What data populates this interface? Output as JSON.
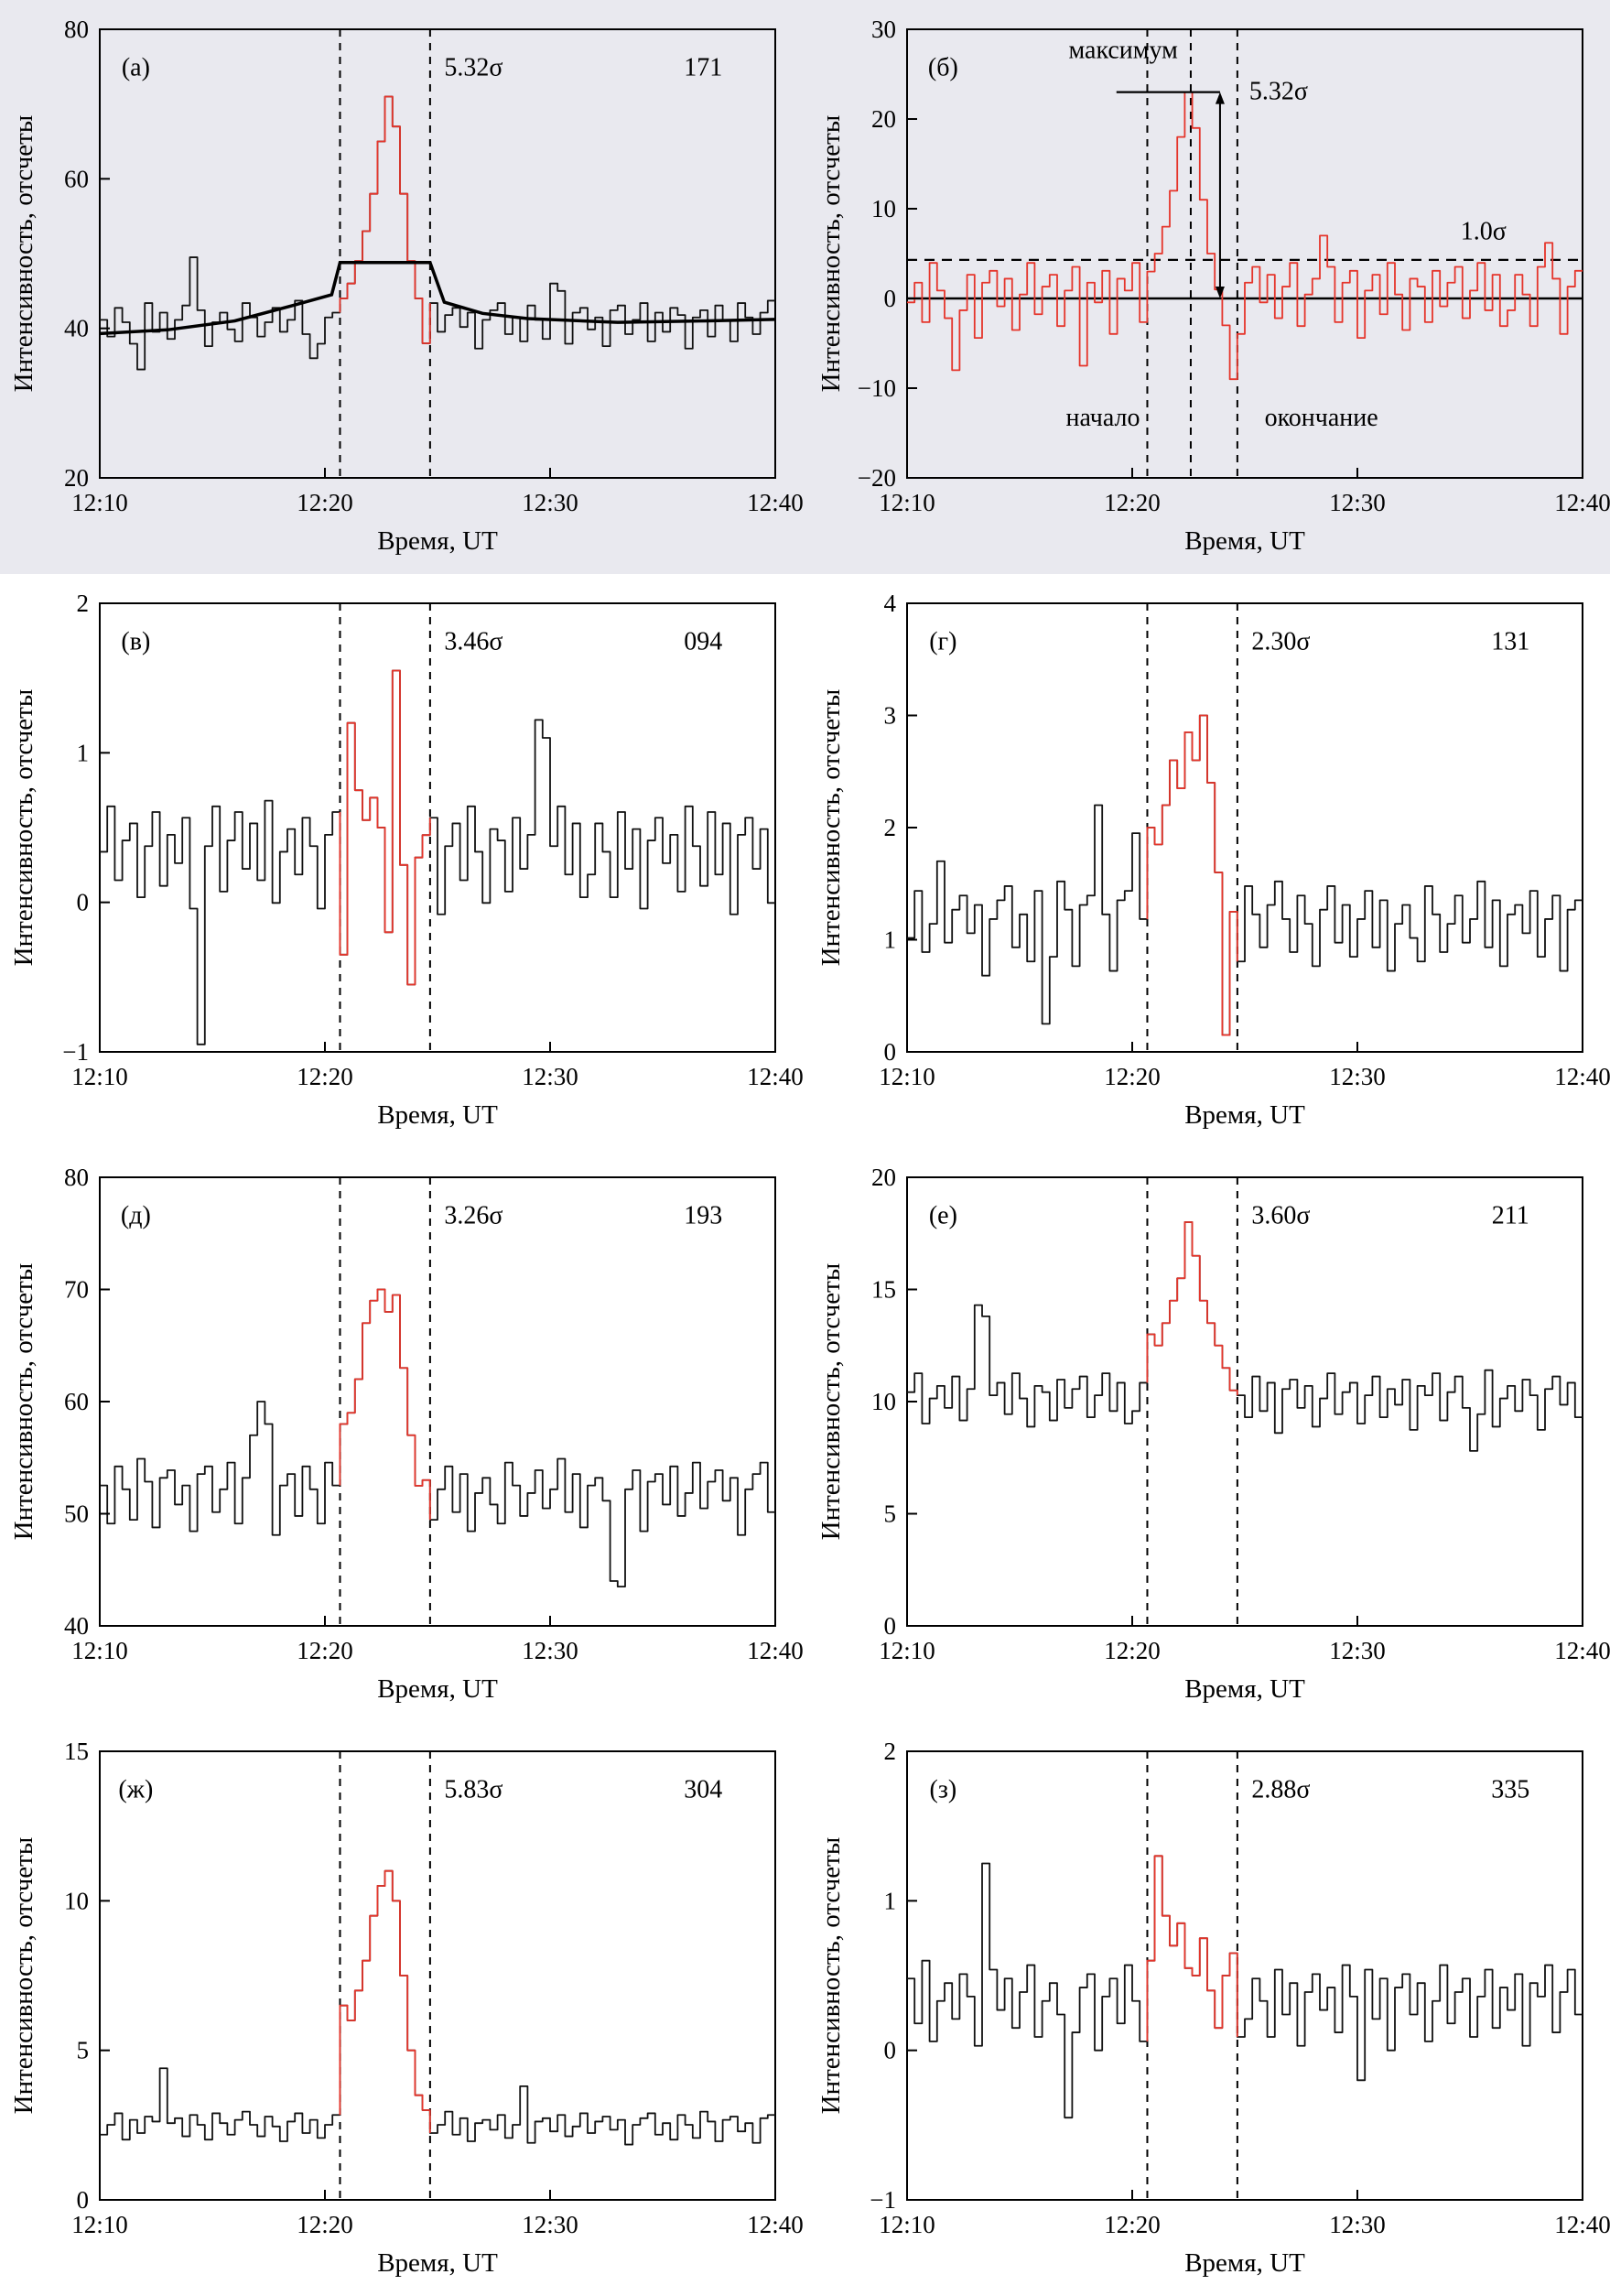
{
  "figure": {
    "x_label": "Время, UT",
    "y_label": "Интенсивность, отсчеты",
    "x_ticks": [
      "12:10",
      "12:20",
      "12:30",
      "12:40"
    ],
    "x_tick_minutes": [
      0,
      10,
      20,
      30
    ],
    "x_range": [
      0,
      30
    ],
    "n_bins": 90,
    "colors": {
      "trace": "#111111",
      "burst": "#e5352b",
      "top_background": "#e9e9ef"
    }
  },
  "noise_patterns": {
    "p1": [
      0.2,
      -0.5,
      0.7,
      0.1,
      -0.8,
      0.4,
      0.9,
      -0.3,
      0.5,
      -0.6,
      0.2,
      0.8,
      -0.4,
      0.6,
      -0.9,
      0.1,
      0.5,
      -0.2,
      -0.7,
      0.9,
      0.3,
      -0.5,
      0.1,
      0.7,
      -0.3,
      0.2,
      1.0,
      -0.4,
      0.6,
      -0.8,
      0.3,
      0.5,
      -0.1,
      0.8,
      -0.6,
      0.2,
      0.7,
      -0.9,
      0.4,
      0.6,
      -0.2,
      0.8,
      -0.5,
      0.1,
      0.9,
      -0.3,
      0.4,
      0.7,
      -0.1,
      0.5,
      -1.0,
      0.2,
      0.6,
      0.9,
      -0.4,
      0.3,
      -0.7,
      0.8,
      0.2,
      -0.6,
      1.0,
      0.4,
      -0.8,
      0.5,
      0.7,
      -0.2,
      0.3,
      -0.9,
      0.6,
      0.8,
      -0.4,
      0.2,
      0.9,
      -0.7,
      0.5,
      -0.3,
      0.7,
      0.4,
      -1.0,
      0.3,
      0.6,
      -0.5,
      0.8,
      0.2,
      -0.7,
      0.9,
      0.3,
      -0.4,
      0.5,
      1.0
    ],
    "p2": [
      -0.3,
      0.6,
      0.1,
      -0.7,
      0.8,
      -0.2,
      0.5,
      -0.9,
      0.3,
      0.7,
      -0.1,
      0.4,
      -0.6,
      0.9,
      0.2,
      -0.5,
      0.8,
      -0.3,
      0.6,
      -1.0,
      0.4,
      0.7,
      -0.2,
      0.5,
      -0.8,
      0.1,
      0.9,
      -0.4,
      0.3,
      0.6,
      -0.7,
      0.2,
      0.8,
      -0.5,
      0.4,
      -0.1,
      0.7,
      -0.9,
      0.5,
      0.2,
      0.9,
      -0.6,
      0.3,
      0.8,
      -0.2,
      0.6,
      -0.4,
      1.0,
      -0.8,
      0.1,
      0.5,
      -0.3,
      0.7,
      0.2,
      -0.9,
      0.4,
      0.8,
      -0.1,
      0.6,
      -0.5,
      0.3,
      0.9,
      -0.7,
      0.1,
      0.5,
      -0.2,
      0.8,
      -0.6,
      0.4,
      0.7,
      -1.0,
      0.2,
      0.6,
      -0.4,
      0.9,
      0.1,
      -0.8,
      0.5,
      0.3,
      -0.6,
      0.7,
      -0.2,
      0.4,
      0.8,
      -0.5,
      0.2,
      0.9,
      -0.3,
      0.6,
      -0.7
    ]
  },
  "chart_data": [
    {
      "id": "a",
      "type": "line",
      "label": "(а)",
      "sigma": "5.32σ",
      "number": "171",
      "ylim": [
        20,
        80
      ],
      "y_ticks": [
        20,
        40,
        60,
        80
      ],
      "baseline": 40.5,
      "noise_amp": 3.2,
      "pattern": "p1",
      "phase": 0,
      "overrides": [
        [
          5,
          34.5
        ],
        [
          12,
          49.5
        ],
        [
          28,
          36
        ],
        [
          60,
          46
        ],
        [
          61,
          45
        ]
      ],
      "burst_start_bin": 32,
      "burst_values": [
        44,
        46,
        49,
        53,
        58,
        65,
        71,
        67,
        58,
        49,
        44,
        38
      ],
      "dashed_x": [
        10.67,
        14.67
      ],
      "mean_line": [
        [
          0,
          39.3
        ],
        [
          3,
          39.8
        ],
        [
          6,
          41
        ],
        [
          8.5,
          43
        ],
        [
          10.3,
          44.5
        ],
        [
          10.67,
          48.8
        ],
        [
          14.67,
          48.8
        ],
        [
          15.3,
          43.5
        ],
        [
          17,
          42
        ],
        [
          19,
          41.3
        ],
        [
          23,
          40.8
        ],
        [
          27,
          41
        ],
        [
          30,
          41.2
        ]
      ]
    },
    {
      "id": "b",
      "type": "line",
      "label": "(б)",
      "ylim": [
        -20,
        30
      ],
      "y_ticks": [
        -20,
        -10,
        0,
        10,
        20,
        30
      ],
      "baseline": 0,
      "noise_amp": 4.4,
      "pattern": "p2",
      "phase": 10,
      "overrides": [
        [
          6,
          -8
        ],
        [
          23,
          -7.5
        ],
        [
          55,
          7
        ],
        [
          85,
          6.2
        ]
      ],
      "burst_start_bin": 32,
      "burst_values": [
        3,
        5,
        8,
        12,
        18,
        23,
        19,
        11,
        5,
        1,
        -3,
        -9
      ],
      "dashed_x": [
        10.67,
        12.6,
        14.67
      ],
      "all_red": true,
      "annotations": {
        "zero_line_y": 0,
        "sigma_line": {
          "y": 4.3,
          "label": "1.0σ",
          "label_x": 25.6,
          "label_y": 6.6
        },
        "max_line": {
          "y": 23,
          "x1": 9.3,
          "x2": 13.9,
          "label": "5.32σ",
          "label_x": 15.2,
          "label_y": 22.2
        },
        "arrow": {
          "x": 13.9,
          "y1": 0,
          "y2": 23
        },
        "texts": [
          {
            "text": "максимум",
            "x": 9.6,
            "y": 26.8
          },
          {
            "text": "начало",
            "x": 8.7,
            "y": -14.2
          },
          {
            "text": "окончание",
            "x": 18.4,
            "y": -14.2
          }
        ]
      }
    },
    {
      "id": "v",
      "type": "line",
      "label": "(в)",
      "sigma": "3.46σ",
      "number": "094",
      "ylim": [
        -1,
        2
      ],
      "y_ticks": [
        -1,
        0,
        1,
        2
      ],
      "baseline": 0.3,
      "noise_amp": 0.38,
      "pattern": "p2",
      "phase": 25,
      "overrides": [
        [
          13,
          -0.95
        ],
        [
          58,
          1.22
        ],
        [
          59,
          1.1
        ]
      ],
      "burst_start_bin": 32,
      "burst_values": [
        -0.35,
        1.2,
        0.75,
        0.55,
        0.7,
        0.5,
        -0.2,
        1.55,
        0.25,
        -0.55,
        0.3,
        0.45
      ],
      "dashed_x": [
        10.67,
        14.67
      ]
    },
    {
      "id": "g",
      "type": "line",
      "label": "(г)",
      "sigma": "2.30σ",
      "number": "131",
      "ylim": [
        0,
        4
      ],
      "y_ticks": [
        0,
        1,
        2,
        3,
        4
      ],
      "baseline": 1.1,
      "noise_amp": 0.42,
      "pattern": "p1",
      "phase": 40,
      "overrides": [
        [
          4,
          1.7
        ],
        [
          18,
          0.25
        ],
        [
          25,
          2.2
        ],
        [
          30,
          1.95
        ]
      ],
      "burst_start_bin": 32,
      "burst_values": [
        2.0,
        1.85,
        2.2,
        2.6,
        2.35,
        2.85,
        2.6,
        3.0,
        2.4,
        1.6,
        0.15,
        1.25
      ],
      "dashed_x": [
        10.67,
        14.67
      ]
    },
    {
      "id": "d",
      "type": "line",
      "label": "(д)",
      "sigma": "3.26σ",
      "number": "193",
      "ylim": [
        40,
        80
      ],
      "y_ticks": [
        40,
        50,
        60,
        70,
        80
      ],
      "baseline": 51.5,
      "noise_amp": 3.4,
      "pattern": "p1",
      "phase": 55,
      "overrides": [
        [
          20,
          57
        ],
        [
          21,
          60
        ],
        [
          22,
          58
        ],
        [
          68,
          44
        ],
        [
          69,
          43.5
        ]
      ],
      "burst_start_bin": 32,
      "burst_values": [
        58,
        59,
        62,
        67,
        69,
        70,
        68,
        69.5,
        63,
        57,
        52.5,
        53
      ],
      "dashed_x": [
        10.67,
        14.67
      ]
    },
    {
      "id": "e",
      "type": "line",
      "label": "(е)",
      "sigma": "3.60σ",
      "number": "211",
      "ylim": [
        0,
        20
      ],
      "y_ticks": [
        0,
        5,
        10,
        15,
        20
      ],
      "baseline": 10,
      "noise_amp": 1.4,
      "pattern": "p2",
      "phase": 60,
      "overrides": [
        [
          9,
          14.3
        ],
        [
          10,
          13.8
        ],
        [
          75,
          7.8
        ]
      ],
      "burst_start_bin": 32,
      "burst_values": [
        13,
        12.5,
        13.5,
        14.5,
        15.5,
        18,
        16.5,
        14.5,
        13.5,
        12.5,
        11.5,
        10.5
      ],
      "dashed_x": [
        10.67,
        14.67
      ]
    },
    {
      "id": "zh",
      "type": "line",
      "label": "(ж)",
      "sigma": "5.83σ",
      "number": "304",
      "ylim": [
        0,
        15
      ],
      "y_ticks": [
        0,
        5,
        10,
        15
      ],
      "baseline": 2.4,
      "noise_amp": 0.55,
      "pattern": "p1",
      "phase": 70,
      "overrides": [
        [
          8,
          4.4
        ],
        [
          56,
          3.8
        ]
      ],
      "burst_start_bin": 32,
      "burst_values": [
        6.5,
        6,
        7,
        8,
        9.5,
        10.5,
        11,
        10,
        7.5,
        5,
        3.5,
        3
      ],
      "dashed_x": [
        10.67,
        14.67
      ]
    },
    {
      "id": "z",
      "type": "line",
      "label": "(з)",
      "sigma": "2.88σ",
      "number": "335",
      "ylim": [
        -1,
        2
      ],
      "y_ticks": [
        -1,
        0,
        1,
        2
      ],
      "baseline": 0.3,
      "noise_amp": 0.3,
      "pattern": "p2",
      "phase": 45,
      "overrides": [
        [
          10,
          1.25
        ],
        [
          21,
          -0.45
        ],
        [
          60,
          -0.2
        ]
      ],
      "burst_start_bin": 32,
      "burst_values": [
        0.6,
        1.3,
        0.9,
        0.7,
        0.85,
        0.55,
        0.5,
        0.75,
        0.4,
        0.15,
        0.5,
        0.65
      ],
      "dashed_x": [
        10.67,
        14.67
      ]
    }
  ]
}
